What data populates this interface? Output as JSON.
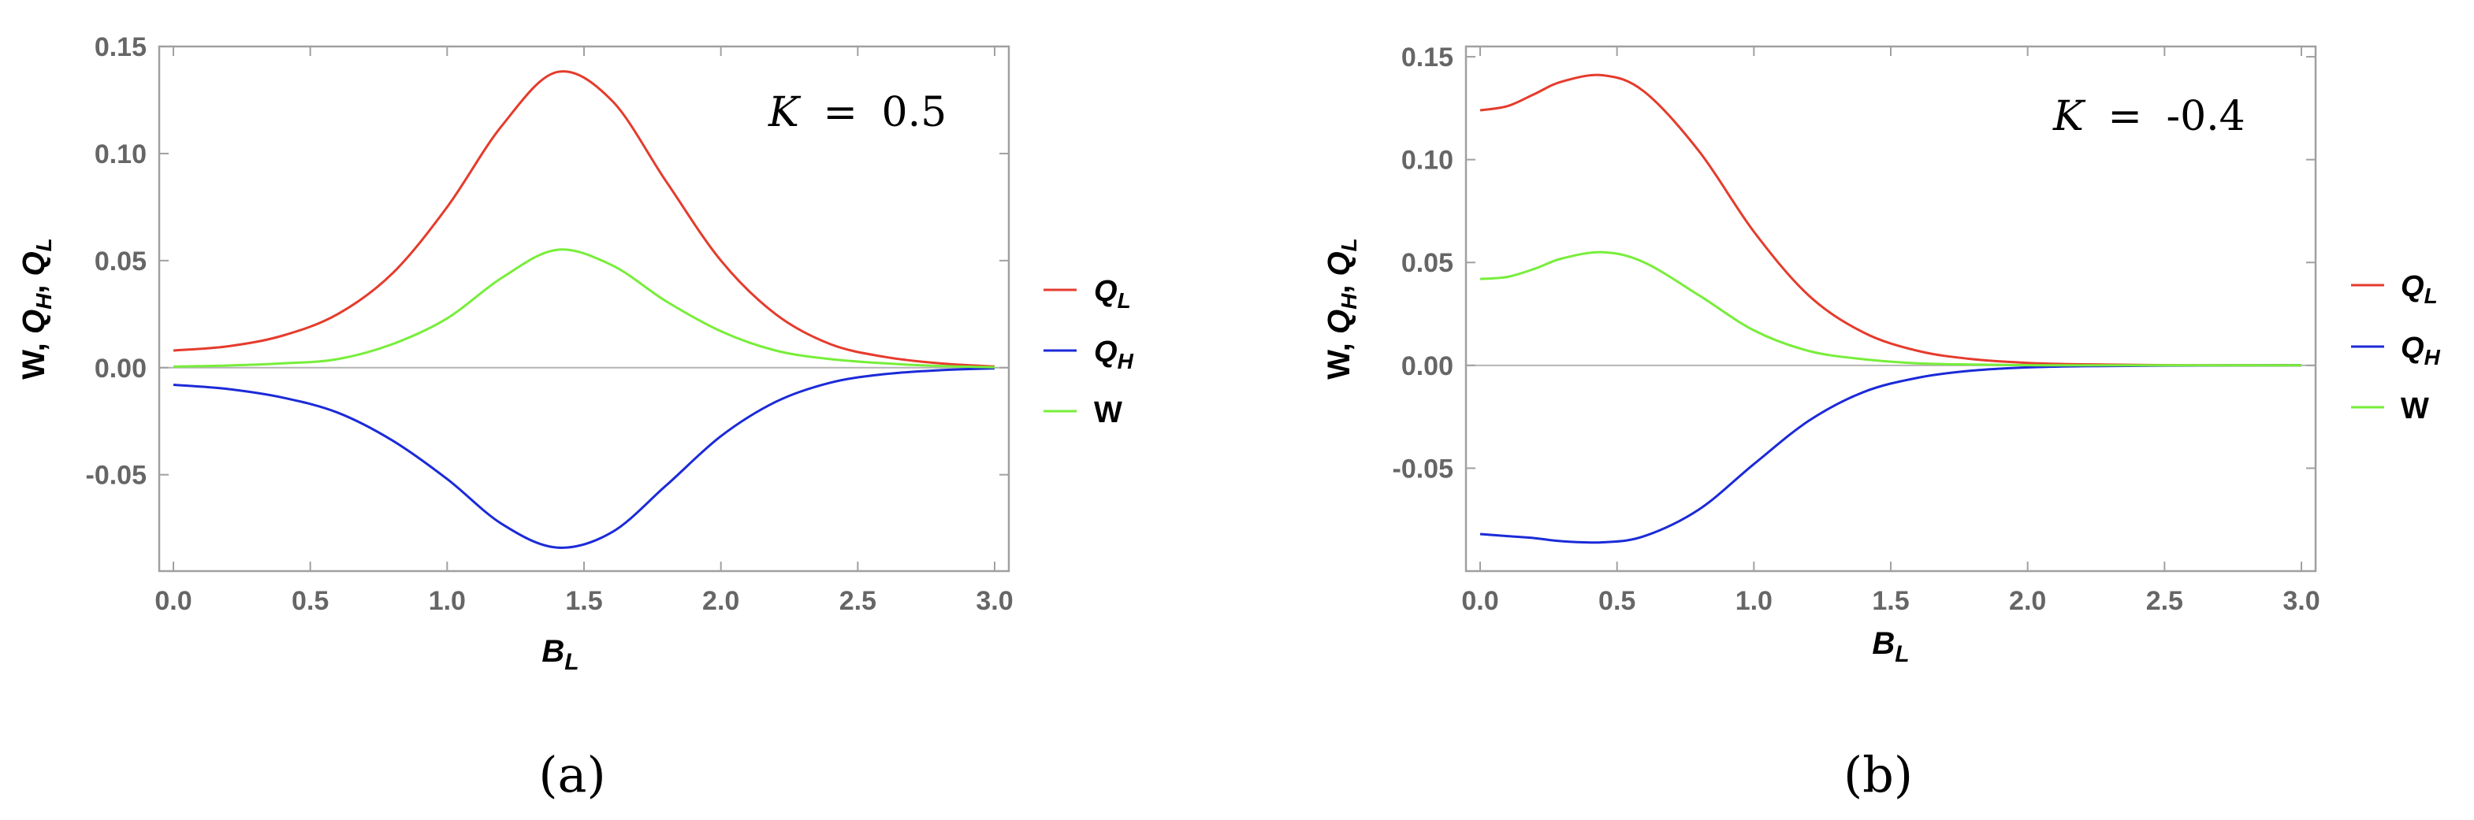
{
  "colors": {
    "QL": "#e53b2c",
    "QH": "#1b2ad8",
    "W": "#77ee3a",
    "frame": "#a0a0a0",
    "zero": "#b4b4b4"
  },
  "chart_data": [
    {
      "type": "line",
      "panel_caption": "(a)",
      "annotation": {
        "lhs": "K",
        "eq": "=",
        "value": "0.5"
      },
      "xlabel": {
        "main": "B",
        "sub": "L"
      },
      "ylabel": "W, Q_H, Q_L",
      "xlim": [
        0,
        3.0
      ],
      "ylim": [
        -0.095,
        0.15
      ],
      "xticks": [
        0,
        0.5,
        1.0,
        1.5,
        2.0,
        2.5,
        3.0
      ],
      "xtick_labels": [
        "0.0",
        "0.5",
        "1.0",
        "1.5",
        "2.0",
        "2.5",
        "3.0"
      ],
      "yticks": [
        -0.05,
        0,
        0.05,
        0.1,
        0.15
      ],
      "ytick_labels": [
        "-0.05",
        "0.00",
        "0.05",
        "0.10",
        "0.15"
      ],
      "x": [
        0,
        0.2,
        0.4,
        0.6,
        0.8,
        1.0,
        1.2,
        1.4,
        1.6,
        1.8,
        2.0,
        2.2,
        2.4,
        2.6,
        2.8,
        3.0
      ],
      "series": [
        {
          "name": "Q_L",
          "key": "QL",
          "values": [
            0.008,
            0.01,
            0.015,
            0.025,
            0.044,
            0.075,
            0.113,
            0.138,
            0.125,
            0.087,
            0.05,
            0.025,
            0.011,
            0.005,
            0.002,
            0.0005
          ]
        },
        {
          "name": "Q_H",
          "key": "QH",
          "values": [
            -0.008,
            -0.01,
            -0.014,
            -0.021,
            -0.034,
            -0.052,
            -0.073,
            -0.084,
            -0.077,
            -0.055,
            -0.032,
            -0.016,
            -0.007,
            -0.003,
            -0.0012,
            -0.0003
          ]
        },
        {
          "name": "W",
          "key": "W",
          "values": [
            0.0005,
            0.001,
            0.002,
            0.004,
            0.011,
            0.023,
            0.042,
            0.055,
            0.048,
            0.031,
            0.017,
            0.008,
            0.004,
            0.002,
            0.0008,
            0.0002
          ]
        }
      ],
      "legend": [
        {
          "main": "Q",
          "sub": "L",
          "key": "QL"
        },
        {
          "main": "Q",
          "sub": "H",
          "key": "QH"
        },
        {
          "main": "W",
          "sub": "",
          "key": "W"
        }
      ]
    },
    {
      "type": "line",
      "panel_caption": "(b)",
      "annotation": {
        "lhs": "K",
        "eq": "=",
        "value": "-0.4"
      },
      "xlabel": {
        "main": "B",
        "sub": "L"
      },
      "ylabel": "W, Q_H, Q_L",
      "xlim": [
        0,
        3.0
      ],
      "ylim": [
        -0.1,
        0.155
      ],
      "xticks": [
        0,
        0.5,
        1.0,
        1.5,
        2.0,
        2.5,
        3.0
      ],
      "xtick_labels": [
        "0.0",
        "0.5",
        "1.0",
        "1.5",
        "2.0",
        "2.5",
        "3.0"
      ],
      "yticks": [
        -0.05,
        0,
        0.05,
        0.1,
        0.15
      ],
      "ytick_labels": [
        "-0.05",
        "0.00",
        "0.05",
        "0.10",
        "0.15"
      ],
      "x": [
        0,
        0.1,
        0.2,
        0.3,
        0.45,
        0.6,
        0.8,
        1.0,
        1.2,
        1.4,
        1.6,
        1.8,
        2.0,
        2.2,
        2.5,
        3.0
      ],
      "series": [
        {
          "name": "Q_L",
          "key": "QL",
          "values": [
            0.124,
            0.126,
            0.132,
            0.138,
            0.141,
            0.133,
            0.104,
            0.065,
            0.034,
            0.016,
            0.007,
            0.003,
            0.0012,
            0.0005,
            0.0001,
            0.0
          ]
        },
        {
          "name": "Q_H",
          "key": "QH",
          "values": [
            -0.082,
            -0.083,
            -0.084,
            -0.0855,
            -0.086,
            -0.083,
            -0.07,
            -0.048,
            -0.027,
            -0.013,
            -0.006,
            -0.0025,
            -0.001,
            -0.0004,
            -0.0001,
            0.0
          ]
        },
        {
          "name": "W",
          "key": "W",
          "values": [
            0.042,
            0.043,
            0.047,
            0.052,
            0.055,
            0.05,
            0.034,
            0.017,
            0.007,
            0.003,
            0.001,
            0.0004,
            0.0001,
            0.0,
            0.0,
            0.0
          ]
        }
      ],
      "legend": [
        {
          "main": "Q",
          "sub": "L",
          "key": "QL"
        },
        {
          "main": "Q",
          "sub": "H",
          "key": "QH"
        },
        {
          "main": "W",
          "sub": "",
          "key": "W"
        }
      ]
    }
  ]
}
